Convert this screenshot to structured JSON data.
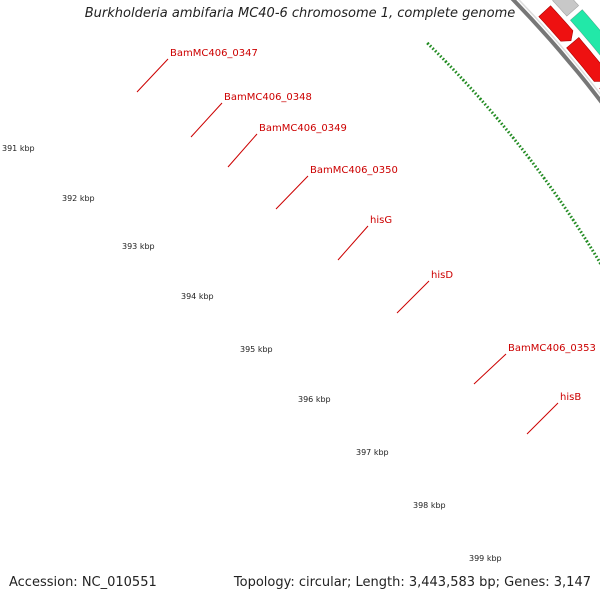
{
  "title": "Burkholderia ambifaria MC40-6 chromosome 1, complete genome",
  "footer": {
    "accession": "Accession: NC_010551",
    "summary": "Topology: circular; Length: 3,443,583 bp; Genes: 3,147"
  },
  "ruler": {
    "kbp_labels": [
      "391 kbp",
      "392 kbp",
      "393 kbp",
      "394 kbp",
      "395 kbp",
      "396 kbp",
      "397 kbp",
      "398 kbp",
      "399 kbp"
    ]
  },
  "gene_labels": [
    "BamMC406_0347",
    "BamMC406_0348",
    "BamMC406_0349",
    "BamMC406_0350",
    "hisG",
    "hisD",
    "BamMC406_0353",
    "hisB"
  ],
  "colors": {
    "cds_red": "#ee1111",
    "olive": "#6b8e23",
    "navy": "#0a0a8a",
    "grey": "#c8c8c8",
    "mint": "#22e8a8",
    "orange": "#ff9900",
    "steelblue": "#4a82b4",
    "yellowgreen": "#99ee33",
    "tick_green": "#228b22",
    "label_red": "#cc0000",
    "backbone": "#777777"
  }
}
